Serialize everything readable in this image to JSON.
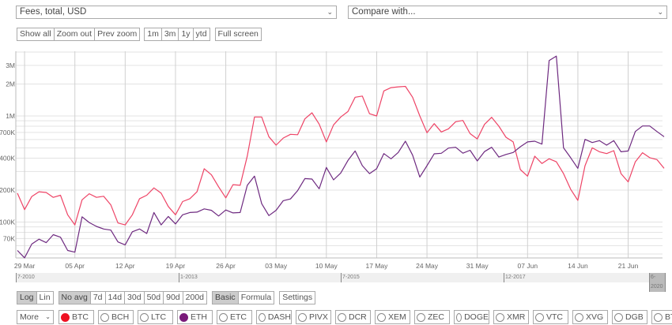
{
  "metric_select": {
    "value": "Fees, total, USD"
  },
  "compare_select": {
    "value": "Compare with..."
  },
  "zoom_buttons": [
    "Show all",
    "Zoom out",
    "Prev zoom"
  ],
  "range_buttons": [
    "1m",
    "3m",
    "1y",
    "ytd"
  ],
  "fullscreen_label": "Full screen",
  "scale_buttons": [
    {
      "label": "Log",
      "active": true
    },
    {
      "label": "Lin",
      "active": false
    }
  ],
  "avg_buttons": [
    {
      "label": "No avg",
      "active": true
    },
    {
      "label": "7d"
    },
    {
      "label": "14d"
    },
    {
      "label": "30d"
    },
    {
      "label": "50d"
    },
    {
      "label": "90d"
    },
    {
      "label": "200d"
    }
  ],
  "mode_buttons": [
    {
      "label": "Basic",
      "active": true
    },
    {
      "label": "Formula"
    }
  ],
  "settings_label": "Settings",
  "more_select": {
    "value": "More"
  },
  "coins": [
    {
      "label": "BTC",
      "selected": true,
      "color": "#ee1122"
    },
    {
      "label": "BCH"
    },
    {
      "label": "LTC"
    },
    {
      "label": "ETH",
      "selected": true,
      "color": "#7a1a7a"
    },
    {
      "label": "ETC"
    },
    {
      "label": "DASH"
    },
    {
      "label": "PIVX"
    },
    {
      "label": "DCR"
    },
    {
      "label": "XEM"
    },
    {
      "label": "ZEC"
    },
    {
      "label": "DOGE"
    },
    {
      "label": "XMR"
    },
    {
      "label": "VTC"
    },
    {
      "label": "XVG"
    },
    {
      "label": "DGB"
    },
    {
      "label": "BTG"
    }
  ],
  "navigator": {
    "labels": [
      "7-2010",
      "1-2013",
      "7-2015",
      "12-2017",
      "6-2020"
    ]
  },
  "chart_data": {
    "type": "line",
    "yscale": "log",
    "ylim": [
      45000,
      4100000
    ],
    "grid": true,
    "ytick_labels": [
      {
        "v": 3000000,
        "t": "3M"
      },
      {
        "v": 2000000,
        "t": "2M"
      },
      {
        "v": 1000000,
        "t": "1M"
      },
      {
        "v": 700000,
        "t": "700K"
      },
      {
        "v": 400000,
        "t": "400K"
      },
      {
        "v": 200000,
        "t": "200K"
      },
      {
        "v": 100000,
        "t": "100K"
      },
      {
        "v": 70000,
        "t": "70K"
      }
    ],
    "xtick_labels": [
      "29 Mar",
      "05 Apr",
      "12 Apr",
      "19 Apr",
      "26 Apr",
      "03 May",
      "10 May",
      "17 May",
      "24 May",
      "31 May",
      "07 Jun",
      "14 Jun",
      "21 Jun"
    ],
    "x": [
      "28 Mar",
      "29 Mar",
      "30 Mar",
      "31 Mar",
      "01 Apr",
      "02 Apr",
      "03 Apr",
      "04 Apr",
      "05 Apr",
      "06 Apr",
      "07 Apr",
      "08 Apr",
      "09 Apr",
      "10 Apr",
      "11 Apr",
      "12 Apr",
      "13 Apr",
      "14 Apr",
      "15 Apr",
      "16 Apr",
      "17 Apr",
      "18 Apr",
      "19 Apr",
      "20 Apr",
      "21 Apr",
      "22 Apr",
      "23 Apr",
      "24 Apr",
      "25 Apr",
      "26 Apr",
      "27 Apr",
      "28 Apr",
      "29 Apr",
      "30 Apr",
      "01 May",
      "02 May",
      "03 May",
      "04 May",
      "05 May",
      "06 May",
      "07 May",
      "08 May",
      "09 May",
      "10 May",
      "11 May",
      "12 May",
      "13 May",
      "14 May",
      "15 May",
      "16 May",
      "17 May",
      "18 May",
      "19 May",
      "20 May",
      "21 May",
      "22 May",
      "23 May",
      "24 May",
      "25 May",
      "26 May",
      "27 May",
      "28 May",
      "29 May",
      "30 May",
      "31 May",
      "01 Jun",
      "02 Jun",
      "03 Jun",
      "04 Jun",
      "05 Jun",
      "06 Jun",
      "07 Jun",
      "08 Jun",
      "09 Jun",
      "10 Jun",
      "11 Jun",
      "12 Jun",
      "13 Jun",
      "14 Jun",
      "15 Jun",
      "16 Jun",
      "17 Jun",
      "18 Jun",
      "19 Jun",
      "20 Jun",
      "21 Jun",
      "22 Jun",
      "23 Jun",
      "24 Jun",
      "25 Jun",
      "26 Jun"
    ],
    "series": [
      {
        "name": "BTC",
        "color": "#ee4466",
        "values": [
          187000,
          131000,
          174000,
          193000,
          190000,
          171000,
          179000,
          117000,
          94000,
          162000,
          185000,
          171000,
          175000,
          145000,
          98000,
          94000,
          117000,
          166000,
          179000,
          210000,
          187000,
          140000,
          117000,
          156000,
          166000,
          193000,
          318000,
          279000,
          215000,
          169000,
          225000,
          222000,
          420000,
          978000,
          978000,
          637000,
          531000,
          619000,
          671000,
          665000,
          939000,
          1070000,
          838000,
          569000,
          824000,
          978000,
          1100000,
          1500000,
          1540000,
          1050000,
          1000000,
          1720000,
          1850000,
          1880000,
          1900000,
          1500000,
          1000000,
          694000,
          847000,
          706000,
          757000,
          882000,
          907000,
          682000,
          608000,
          832000,
          971000,
          800000,
          630000,
          569000,
          312000,
          271000,
          418000,
          356000,
          395000,
          370000,
          286000,
          204000,
          160000,
          340000,
          501000,
          460000,
          442000,
          471000,
          286000,
          239000,
          370000,
          450000,
          404000,
          388000,
          321000
        ]
      },
      {
        "name": "ETH",
        "color": "#6e2a80",
        "values": [
          54000,
          46000,
          62000,
          69000,
          64000,
          76000,
          72000,
          54000,
          52000,
          112000,
          99000,
          91000,
          86000,
          84000,
          65000,
          61000,
          81000,
          86000,
          78000,
          123000,
          94000,
          113000,
          96000,
          117000,
          123000,
          124000,
          133000,
          129000,
          114000,
          130000,
          122000,
          123000,
          222000,
          271000,
          149000,
          115000,
          129000,
          159000,
          165000,
          198000,
          257000,
          254000,
          206000,
          327000,
          250000,
          290000,
          381000,
          468000,
          340000,
          286000,
          318000,
          442000,
          395000,
          453000,
          578000,
          427000,
          266000,
          340000,
          440000,
          445000,
          498000,
          507000,
          446000,
          475000,
          377000,
          461000,
          507000,
          410000,
          434000,
          453000,
          513000,
          569000,
          578000,
          543000,
          3330000,
          3670000,
          501000,
          404000,
          321000,
          601000,
          562000,
          585000,
          531000,
          585000,
          460000,
          468000,
          714000,
          805000,
          805000,
          714000,
          637000
        ]
      }
    ]
  }
}
